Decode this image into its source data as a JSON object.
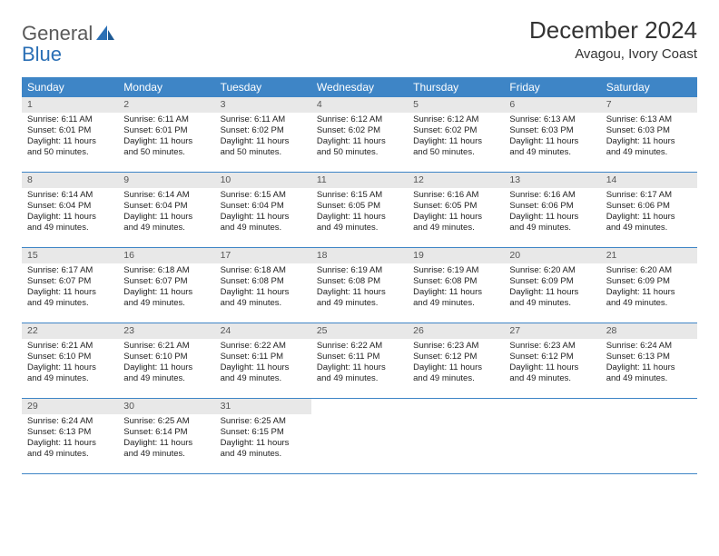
{
  "brand": {
    "line1": "General",
    "line2": "Blue"
  },
  "title": "December 2024",
  "location": "Avagou, Ivory Coast",
  "colors": {
    "header_bg": "#3e85c6",
    "header_text": "#ffffff",
    "daynum_bg": "#e8e8e8",
    "border": "#3e85c6",
    "logo_gray": "#5a5a5a",
    "logo_blue": "#2a6fb5"
  },
  "weekdays": [
    "Sunday",
    "Monday",
    "Tuesday",
    "Wednesday",
    "Thursday",
    "Friday",
    "Saturday"
  ],
  "weeks": [
    [
      {
        "n": "1",
        "sr": "6:11 AM",
        "ss": "6:01 PM",
        "dl": "11 hours and 50 minutes."
      },
      {
        "n": "2",
        "sr": "6:11 AM",
        "ss": "6:01 PM",
        "dl": "11 hours and 50 minutes."
      },
      {
        "n": "3",
        "sr": "6:11 AM",
        "ss": "6:02 PM",
        "dl": "11 hours and 50 minutes."
      },
      {
        "n": "4",
        "sr": "6:12 AM",
        "ss": "6:02 PM",
        "dl": "11 hours and 50 minutes."
      },
      {
        "n": "5",
        "sr": "6:12 AM",
        "ss": "6:02 PM",
        "dl": "11 hours and 50 minutes."
      },
      {
        "n": "6",
        "sr": "6:13 AM",
        "ss": "6:03 PM",
        "dl": "11 hours and 49 minutes."
      },
      {
        "n": "7",
        "sr": "6:13 AM",
        "ss": "6:03 PM",
        "dl": "11 hours and 49 minutes."
      }
    ],
    [
      {
        "n": "8",
        "sr": "6:14 AM",
        "ss": "6:04 PM",
        "dl": "11 hours and 49 minutes."
      },
      {
        "n": "9",
        "sr": "6:14 AM",
        "ss": "6:04 PM",
        "dl": "11 hours and 49 minutes."
      },
      {
        "n": "10",
        "sr": "6:15 AM",
        "ss": "6:04 PM",
        "dl": "11 hours and 49 minutes."
      },
      {
        "n": "11",
        "sr": "6:15 AM",
        "ss": "6:05 PM",
        "dl": "11 hours and 49 minutes."
      },
      {
        "n": "12",
        "sr": "6:16 AM",
        "ss": "6:05 PM",
        "dl": "11 hours and 49 minutes."
      },
      {
        "n": "13",
        "sr": "6:16 AM",
        "ss": "6:06 PM",
        "dl": "11 hours and 49 minutes."
      },
      {
        "n": "14",
        "sr": "6:17 AM",
        "ss": "6:06 PM",
        "dl": "11 hours and 49 minutes."
      }
    ],
    [
      {
        "n": "15",
        "sr": "6:17 AM",
        "ss": "6:07 PM",
        "dl": "11 hours and 49 minutes."
      },
      {
        "n": "16",
        "sr": "6:18 AM",
        "ss": "6:07 PM",
        "dl": "11 hours and 49 minutes."
      },
      {
        "n": "17",
        "sr": "6:18 AM",
        "ss": "6:08 PM",
        "dl": "11 hours and 49 minutes."
      },
      {
        "n": "18",
        "sr": "6:19 AM",
        "ss": "6:08 PM",
        "dl": "11 hours and 49 minutes."
      },
      {
        "n": "19",
        "sr": "6:19 AM",
        "ss": "6:08 PM",
        "dl": "11 hours and 49 minutes."
      },
      {
        "n": "20",
        "sr": "6:20 AM",
        "ss": "6:09 PM",
        "dl": "11 hours and 49 minutes."
      },
      {
        "n": "21",
        "sr": "6:20 AM",
        "ss": "6:09 PM",
        "dl": "11 hours and 49 minutes."
      }
    ],
    [
      {
        "n": "22",
        "sr": "6:21 AM",
        "ss": "6:10 PM",
        "dl": "11 hours and 49 minutes."
      },
      {
        "n": "23",
        "sr": "6:21 AM",
        "ss": "6:10 PM",
        "dl": "11 hours and 49 minutes."
      },
      {
        "n": "24",
        "sr": "6:22 AM",
        "ss": "6:11 PM",
        "dl": "11 hours and 49 minutes."
      },
      {
        "n": "25",
        "sr": "6:22 AM",
        "ss": "6:11 PM",
        "dl": "11 hours and 49 minutes."
      },
      {
        "n": "26",
        "sr": "6:23 AM",
        "ss": "6:12 PM",
        "dl": "11 hours and 49 minutes."
      },
      {
        "n": "27",
        "sr": "6:23 AM",
        "ss": "6:12 PM",
        "dl": "11 hours and 49 minutes."
      },
      {
        "n": "28",
        "sr": "6:24 AM",
        "ss": "6:13 PM",
        "dl": "11 hours and 49 minutes."
      }
    ],
    [
      {
        "n": "29",
        "sr": "6:24 AM",
        "ss": "6:13 PM",
        "dl": "11 hours and 49 minutes."
      },
      {
        "n": "30",
        "sr": "6:25 AM",
        "ss": "6:14 PM",
        "dl": "11 hours and 49 minutes."
      },
      {
        "n": "31",
        "sr": "6:25 AM",
        "ss": "6:15 PM",
        "dl": "11 hours and 49 minutes."
      },
      null,
      null,
      null,
      null
    ]
  ],
  "labels": {
    "sunrise": "Sunrise:",
    "sunset": "Sunset:",
    "daylight": "Daylight:"
  }
}
